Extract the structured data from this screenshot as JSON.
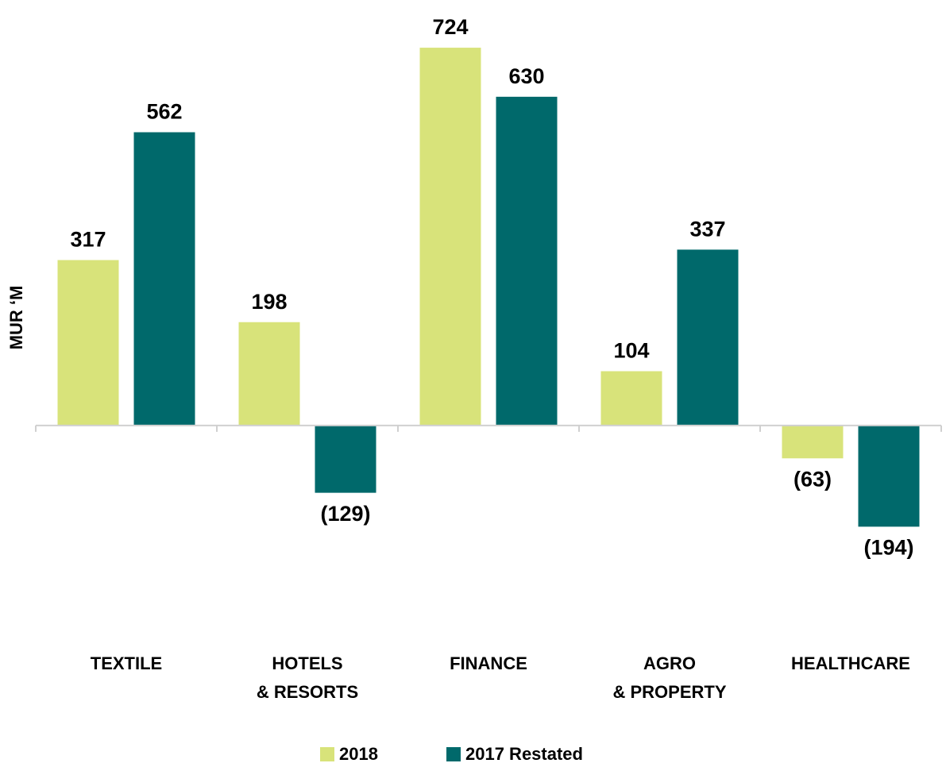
{
  "chart_data": {
    "type": "bar",
    "y_label": "MUR ‘M",
    "categories": [
      [
        "TEXTILE"
      ],
      [
        "HOTELS",
        "& RESORTS"
      ],
      [
        "FINANCE"
      ],
      [
        "AGRO",
        "& PROPERTY"
      ],
      [
        "HEALTHCARE"
      ]
    ],
    "series": [
      {
        "name": "2018",
        "color": "#d8e37a",
        "values": [
          317,
          198,
          724,
          104,
          -63
        ],
        "value_labels": [
          "317",
          "198",
          "724",
          "104",
          "(63)"
        ]
      },
      {
        "name": "2017 Restated",
        "color": "#00696b",
        "values": [
          562,
          -129,
          630,
          337,
          -194
        ],
        "value_labels": [
          "562",
          "(129)",
          "630",
          "337",
          "(194)"
        ]
      }
    ],
    "ylim": [
      -300,
      750
    ]
  }
}
